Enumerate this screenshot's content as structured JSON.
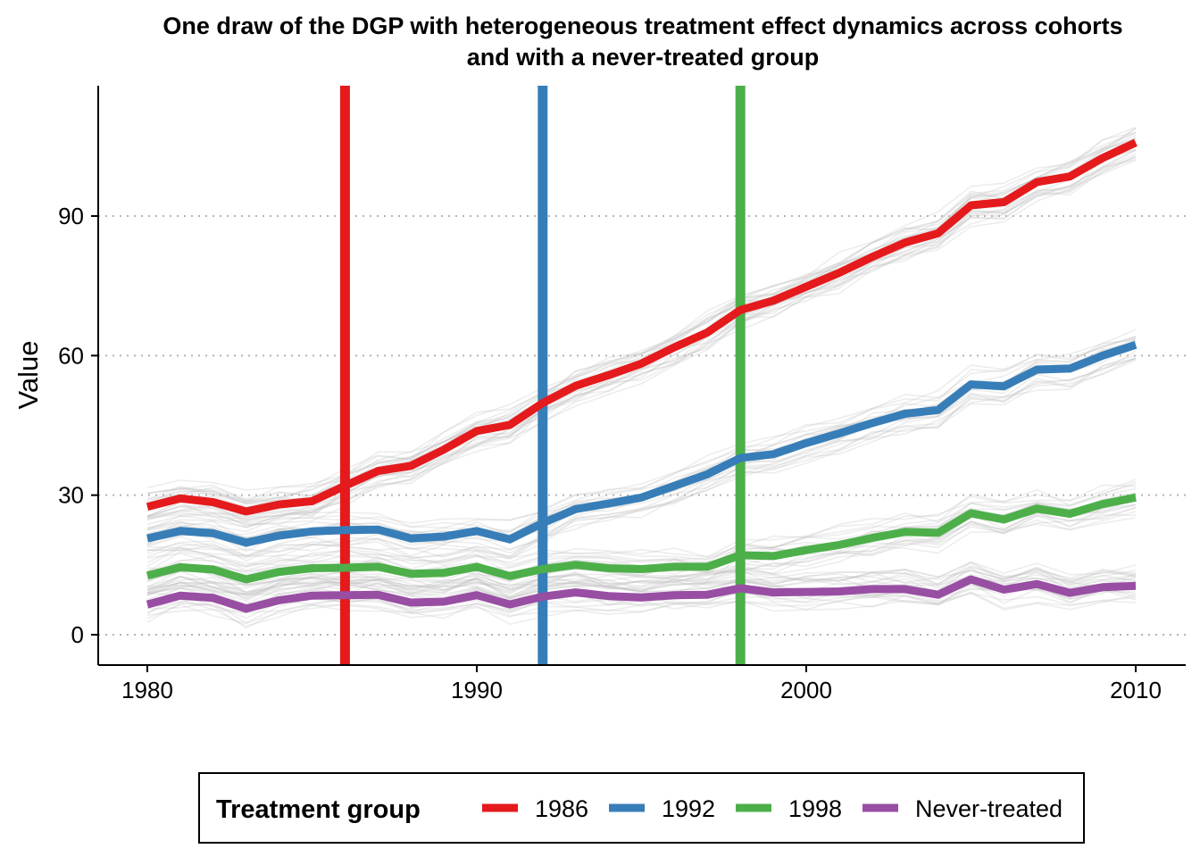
{
  "chart_data": {
    "type": "line",
    "title_line1": "One draw of the DGP with heterogeneous treatment effect dynamics across cohorts",
    "title_line2": "and with a never-treated group",
    "xlabel": "",
    "ylabel": "Value",
    "xlim": [
      1978.5,
      2011.5
    ],
    "ylim": [
      -6,
      118
    ],
    "x_ticks": [
      1980,
      1990,
      2000,
      2010
    ],
    "y_ticks": [
      0,
      30,
      60,
      90
    ],
    "grid": "horizontal dotted",
    "legend_position": "bottom",
    "legend_title": "Treatment group",
    "x": [
      1980,
      1981,
      1982,
      1983,
      1984,
      1985,
      1986,
      1987,
      1988,
      1989,
      1990,
      1991,
      1992,
      1993,
      1994,
      1995,
      1996,
      1997,
      1998,
      1999,
      2000,
      2001,
      2002,
      2003,
      2004,
      2005,
      2006,
      2007,
      2008,
      2009,
      2010
    ],
    "series": [
      {
        "name": "1986",
        "color": "#E41A1C",
        "treatment_year": 1986,
        "values": [
          27.5,
          29.3,
          28.5,
          26.5,
          28.0,
          28.7,
          32.0,
          35.2,
          36.3,
          39.8,
          43.8,
          45.1,
          49.8,
          53.5,
          55.8,
          58.3,
          61.8,
          65.0,
          69.8,
          71.8,
          74.8,
          77.8,
          81.2,
          84.3,
          86.3,
          92.3,
          93.0,
          97.3,
          98.5,
          102.5,
          105.8
        ]
      },
      {
        "name": "1992",
        "color": "#377EB8",
        "treatment_year": 1992,
        "values": [
          20.7,
          22.3,
          21.8,
          19.8,
          21.3,
          22.2,
          22.5,
          22.6,
          20.7,
          21.1,
          22.3,
          20.5,
          24.0,
          27.0,
          28.2,
          29.5,
          32.0,
          34.5,
          38.0,
          38.8,
          41.2,
          43.3,
          45.5,
          47.5,
          48.3,
          53.8,
          53.4,
          57.0,
          57.2,
          60.0,
          62.3
        ]
      },
      {
        "name": "1998",
        "color": "#4DAF4A",
        "treatment_year": 1998,
        "values": [
          12.7,
          14.5,
          14.0,
          11.9,
          13.5,
          14.3,
          14.4,
          14.6,
          13.1,
          13.3,
          14.6,
          12.6,
          14.1,
          15.0,
          14.3,
          14.1,
          14.6,
          14.6,
          17.1,
          16.9,
          18.2,
          19.3,
          20.8,
          22.1,
          21.9,
          26.1,
          24.8,
          27.1,
          26.0,
          28.1,
          29.5
        ]
      },
      {
        "name": "Never-treated",
        "color": "#984EA3",
        "treatment_year": null,
        "values": [
          6.5,
          8.4,
          7.9,
          5.6,
          7.4,
          8.4,
          8.5,
          8.6,
          6.9,
          7.1,
          8.5,
          6.5,
          8.2,
          9.1,
          8.3,
          8.0,
          8.5,
          8.6,
          10.0,
          9.1,
          9.2,
          9.3,
          9.8,
          9.8,
          8.6,
          11.9,
          9.7,
          10.9,
          9.0,
          10.2,
          10.5
        ]
      }
    ],
    "background_draws": {
      "color": "#bdbdbd",
      "description": "many faint simulated draws around each group's mean path"
    }
  }
}
